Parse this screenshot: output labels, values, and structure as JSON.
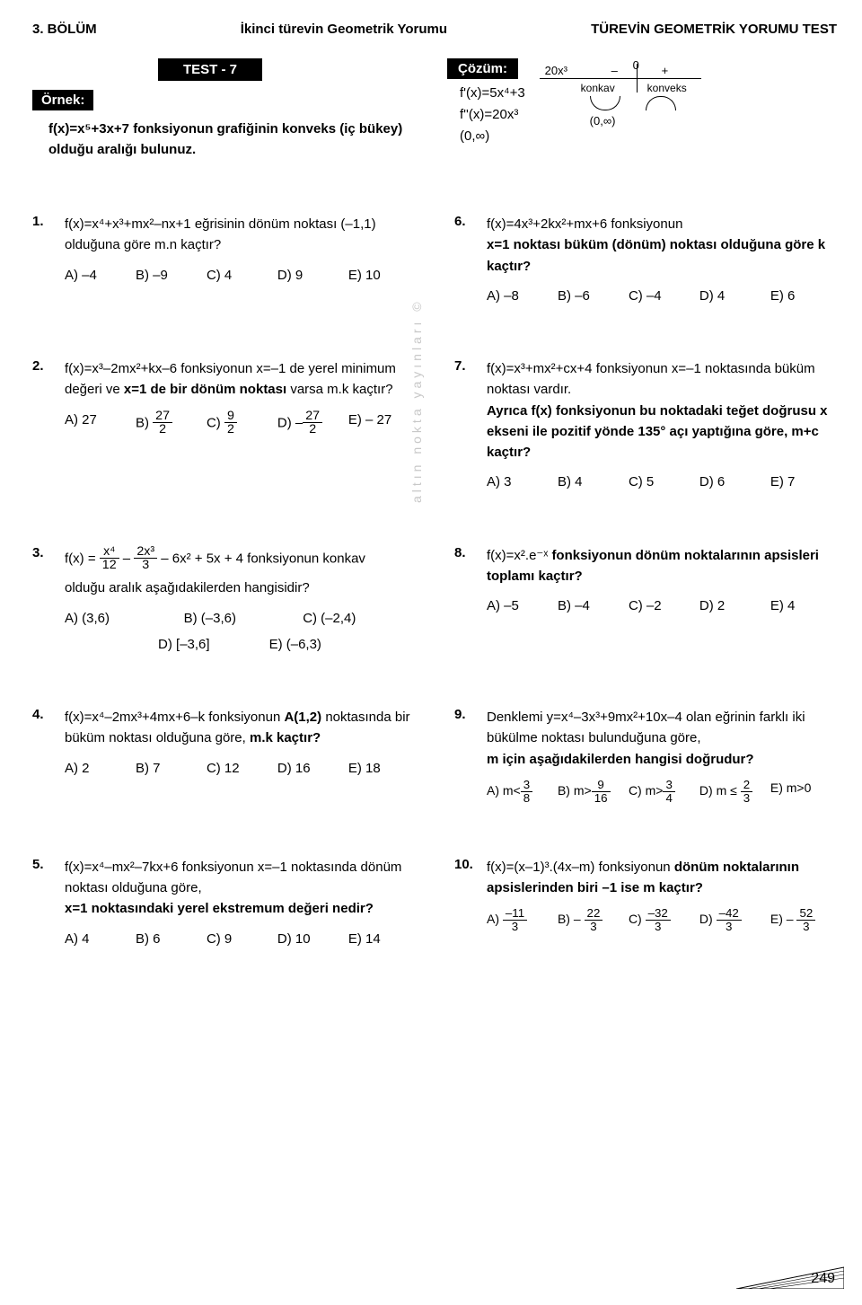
{
  "header": {
    "chapter": "3. BÖLÜM",
    "topic": "İkinci türevin Geometrik Yorumu",
    "testTitle": "TÜREVİN GEOMETRİK YORUMU TEST"
  },
  "testLabel": "TEST - 7",
  "ornek": {
    "label": "Örnek:",
    "text": "f(x)=x⁵+3x+7 fonksiyonun grafiğinin konveks (iç bükey) olduğu aralığı bulunuz."
  },
  "cozum": {
    "label": "Çözüm:",
    "l1": "f'(x)=5x⁴+3",
    "l2": "f''(x)=20x³",
    "l3": "(0,∞)",
    "result": "(0,∞)",
    "diagram": {
      "term": "20x³",
      "zero": "0",
      "minus": "–",
      "plus": "+",
      "left": "konkav",
      "right": "konveks"
    }
  },
  "q1": {
    "num": "1.",
    "stem": "f(x)=x⁴+x³+mx²–nx+1 eğrisinin dönüm noktası (–1,1) olduğuna göre m.n kaçtır?",
    "opts": [
      "A) –4",
      "B) –9",
      "C) 4",
      "D) 9",
      "E) 10"
    ]
  },
  "q2": {
    "num": "2.",
    "stem_a": "f(x)=x³–2mx²+kx–6 fonksiyonun x=–1 de yerel minimum değeri ve ",
    "stem_b": "x=1 de bir dönüm noktası",
    "stem_c": " varsa m.k kaçtır?",
    "opts": {
      "A": "A) 27",
      "B_pre": "B) ",
      "B_num": "27",
      "B_den": "2",
      "C_pre": "C) ",
      "C_num": "9",
      "C_den": "2",
      "D_pre": "D) –",
      "D_num": "27",
      "D_den": "2",
      "E": "E)  – 27"
    }
  },
  "q3": {
    "num": "3.",
    "stem_pre": "f(x) = ",
    "t1n": "x⁴",
    "t1d": "12",
    "mid1": " – ",
    "t2n": "2x³",
    "t2d": "3",
    "stem_post": " – 6x² + 5x + 4  fonksiyonun konkav",
    "stem2": "olduğu aralık aşağıdakilerden hangisidir?",
    "optsA": [
      "A) (3,6)",
      "B) (–3,6)",
      "C) (–2,4)"
    ],
    "optsB": [
      "D) [–3,6]",
      "E) (–6,3)"
    ]
  },
  "q4": {
    "num": "4.",
    "stem": "f(x)=x⁴–2mx³+4mx+6–k fonksiyonun <b>A(1,2)</b> noktasında bir büküm noktası olduğuna göre, <b>m.k kaçtır?</b>",
    "opts": [
      "A) 2",
      "B) 7",
      "C) 12",
      "D) 16",
      "E) 18"
    ]
  },
  "q5": {
    "num": "5.",
    "stem1": "f(x)=x⁴–mx²–7kx+6 fonksiyonun x=–1 noktasında dönüm noktası olduğuna göre,",
    "stem2": "x=1 noktasındaki yerel ekstremum değeri nedir?",
    "opts": [
      "A) 4",
      "B) 6",
      "C) 9",
      "D) 10",
      "E) 14"
    ]
  },
  "q6": {
    "num": "6.",
    "stem1": "f(x)=4x³+2kx²+mx+6 fonksiyonun",
    "stem2": "x=1 noktası büküm (dönüm) noktası olduğuna göre k kaçtır?",
    "opts": [
      "A) –8",
      "B) –6",
      "C) –4",
      "D) 4",
      "E) 6"
    ]
  },
  "q7": {
    "num": "7.",
    "stem1": "f(x)=x³+mx²+cx+4 fonksiyonun x=–1 noktasında büküm noktası vardır.",
    "stem2": "Ayrıca f(x) fonksiyonun bu noktadaki teğet doğrusu x ekseni ile pozitif yönde 135° açı yaptığına göre, m+c kaçtır?",
    "opts": [
      "A) 3",
      "B) 4",
      "C) 5",
      "D) 6",
      "E) 7"
    ]
  },
  "q8": {
    "num": "8.",
    "stem": "f(x)=x².e⁻ˣ <b>fonksiyonun dönüm noktalarının apsisleri toplamı kaçtır?</b>",
    "opts": [
      "A) –5",
      "B) –4",
      "C) –2",
      "D) 2",
      "E) 4"
    ]
  },
  "q9": {
    "num": "9.",
    "stem1": "Denklemi y=x⁴–3x³+9mx²+10x–4 olan eğrinin farklı iki bükülme noktası bulunduğuna göre,",
    "stem2": "m için aşağıdakilerden hangisi doğrudur?",
    "opts": {
      "A_pre": "A) m<",
      "A_num": "3",
      "A_den": "8",
      "B_pre": "B) m>",
      "B_num": "9",
      "B_den": "16",
      "C_pre": "C) m>",
      "C_num": "3",
      "C_den": "4",
      "D_pre": "D) m ≤ ",
      "D_num": "2",
      "D_den": "3",
      "E": "E) m>0"
    }
  },
  "q10": {
    "num": "10.",
    "stem": "f(x)=(x–1)³.(4x–m) fonksiyonun <b>dönüm noktalarının apsislerinden biri –1 ise m kaçtır?</b>",
    "opts": {
      "A_pre": "A) ",
      "A_num": "–11",
      "A_den": "3",
      "B_pre": "B) – ",
      "B_num": "22",
      "B_den": "3",
      "C_pre": "C) ",
      "C_num": "–32",
      "C_den": "3",
      "D_pre": "D) ",
      "D_num": "–42",
      "D_den": "3",
      "E_pre": "E) – ",
      "E_num": "52",
      "E_den": "3"
    }
  },
  "watermark": "altın nokta yayınları ©",
  "pageNum": "249"
}
